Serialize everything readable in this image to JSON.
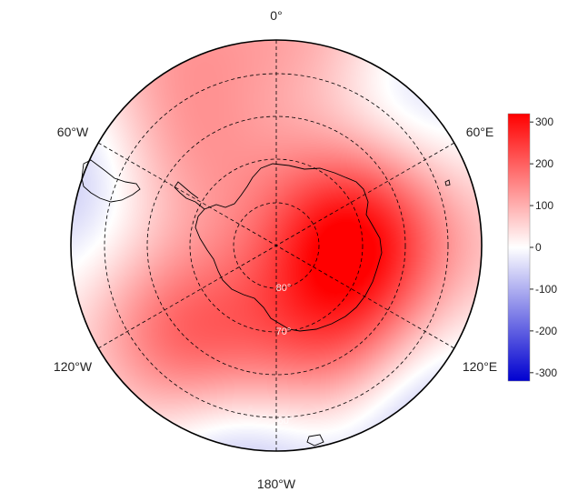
{
  "map": {
    "projection": "south-polar-stereographic",
    "lon_labels": [
      "0°",
      "60°E",
      "120°E",
      "180°W",
      "120°W",
      "60°W"
    ],
    "lat_labels": [
      "80°",
      "70°",
      "60°"
    ],
    "graticule_style": "dashed",
    "coastlines": true
  },
  "colorbar": {
    "ticks": [
      "300",
      "200",
      "100",
      "0",
      "-100",
      "-200",
      "-300"
    ],
    "range": [
      -320,
      320
    ],
    "colors": {
      "min": "#0000d0",
      "mid": "#ffffff",
      "max": "#ff0000"
    }
  },
  "field": {
    "description_units": "anomaly",
    "blobs": [
      {
        "lon": 80,
        "lat": -75,
        "value": 290
      },
      {
        "lon": 150,
        "lat": -68,
        "value": 170
      },
      {
        "lon": -135,
        "lat": -65,
        "value": 190
      },
      {
        "lon": -45,
        "lat": -64,
        "value": 120
      },
      {
        "lon": 10,
        "lat": -48,
        "value": 100
      },
      {
        "lon": -25,
        "lat": -42,
        "value": 90
      },
      {
        "lon": 40,
        "lat": -52,
        "value": -70
      },
      {
        "lon": -70,
        "lat": -50,
        "value": -90
      },
      {
        "lon": -170,
        "lat": -48,
        "value": -100
      },
      {
        "lon": 140,
        "lat": -48,
        "value": -110
      },
      {
        "lon": 90,
        "lat": -45,
        "value": 40
      }
    ]
  }
}
